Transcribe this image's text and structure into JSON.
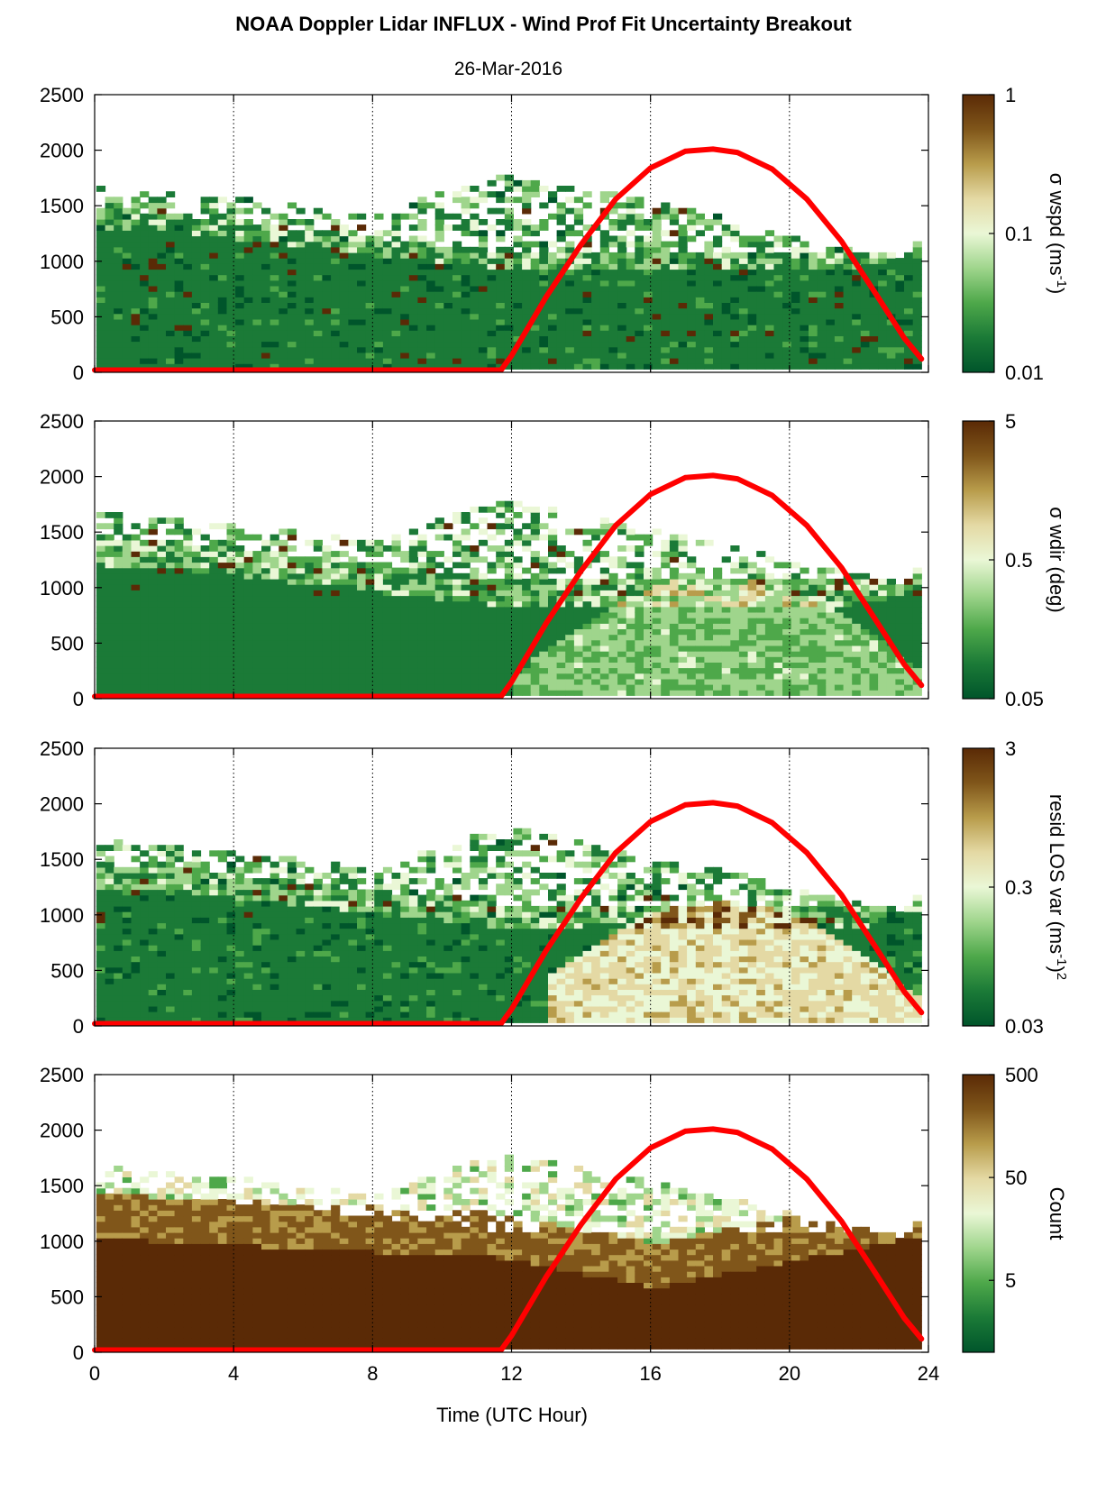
{
  "figure": {
    "title": "NOAA Doppler Lidar INFLUX - Wind Prof Fit Uncertainty Breakout",
    "subtitle": "26-Mar-2016",
    "xlabel": "Time (UTC Hour)"
  },
  "colormap": [
    "#00552b",
    "#1b7a37",
    "#4ea84a",
    "#9fd58c",
    "#eaf7d6",
    "#e4d9a4",
    "#b89c4b",
    "#80561a",
    "#5a2a06"
  ],
  "chart_data": [
    {
      "type": "heatmap",
      "panel": 1,
      "xlim": [
        0,
        24
      ],
      "ylim": [
        0,
        2500
      ],
      "xticks": [
        0,
        4,
        8,
        12,
        16,
        20,
        24
      ],
      "yticks": [
        0,
        500,
        1000,
        1500,
        2000,
        2500
      ],
      "grid": "x dotted",
      "colorbar": {
        "label_main": "σ wspd (ms",
        "label_sup": "-1",
        "label_end": ")",
        "scale": "log",
        "range": [
          0.01,
          1
        ],
        "ticks": [
          "0.01",
          "0.1",
          "1"
        ]
      },
      "series": [
        {
          "name": "",
          "type": "line",
          "color": "#ff0000",
          "x": [
            0,
            11.7,
            12,
            13,
            14,
            15,
            16,
            17,
            17.8,
            18.5,
            19.5,
            20.5,
            21.5,
            22.5,
            23.3,
            23.8
          ],
          "y": [
            20,
            20,
            150,
            680,
            1150,
            1560,
            1840,
            1990,
            2010,
            1980,
            1830,
            1560,
            1180,
            700,
            310,
            120
          ]
        }
      ]
    },
    {
      "type": "heatmap",
      "panel": 2,
      "xlim": [
        0,
        24
      ],
      "ylim": [
        0,
        2500
      ],
      "xticks": [
        0,
        4,
        8,
        12,
        16,
        20,
        24
      ],
      "yticks": [
        0,
        500,
        1000,
        1500,
        2000,
        2500
      ],
      "grid": "x dotted",
      "colorbar": {
        "label_main": "σ wdir (deg)",
        "label_sup": "",
        "label_end": "",
        "scale": "log",
        "range": [
          0.05,
          5
        ],
        "ticks": [
          "0.05",
          "0.5",
          "5"
        ]
      },
      "series": [
        {
          "name": "",
          "type": "line",
          "color": "#ff0000",
          "x": [
            0,
            11.7,
            12,
            13,
            14,
            15,
            16,
            17,
            17.8,
            18.5,
            19.5,
            20.5,
            21.5,
            22.5,
            23.3,
            23.8
          ],
          "y": [
            20,
            20,
            150,
            680,
            1150,
            1560,
            1840,
            1990,
            2010,
            1980,
            1830,
            1560,
            1180,
            700,
            310,
            120
          ]
        }
      ]
    },
    {
      "type": "heatmap",
      "panel": 3,
      "xlim": [
        0,
        24
      ],
      "ylim": [
        0,
        2500
      ],
      "xticks": [
        0,
        4,
        8,
        12,
        16,
        20,
        24
      ],
      "yticks": [
        0,
        500,
        1000,
        1500,
        2000,
        2500
      ],
      "grid": "x dotted",
      "colorbar": {
        "label_main": "resid LOS var (ms",
        "label_sup": "-1",
        "label_end": ")",
        "label_end_sup": "2",
        "scale": "log",
        "range": [
          0.03,
          3
        ],
        "ticks": [
          "0.03",
          "0.3",
          "3"
        ]
      },
      "series": [
        {
          "name": "",
          "type": "line",
          "color": "#ff0000",
          "x": [
            0,
            11.7,
            12,
            13,
            14,
            15,
            16,
            17,
            17.8,
            18.5,
            19.5,
            20.5,
            21.5,
            22.5,
            23.3,
            23.8
          ],
          "y": [
            20,
            20,
            150,
            680,
            1150,
            1560,
            1840,
            1990,
            2010,
            1980,
            1830,
            1560,
            1180,
            700,
            310,
            120
          ]
        }
      ]
    },
    {
      "type": "heatmap",
      "panel": 4,
      "xlim": [
        0,
        24
      ],
      "ylim": [
        0,
        2500
      ],
      "xticks": [
        0,
        4,
        8,
        12,
        16,
        20,
        24
      ],
      "yticks": [
        0,
        500,
        1000,
        1500,
        2000,
        2500
      ],
      "grid": "x dotted",
      "colorbar": {
        "label_main": "Count",
        "label_sup": "",
        "label_end": "",
        "scale": "log",
        "range": [
          1,
          500
        ],
        "ticks": [
          "5",
          "50",
          "500"
        ]
      },
      "series": [
        {
          "name": "",
          "type": "line",
          "color": "#ff0000",
          "x": [
            0,
            11.7,
            12,
            13,
            14,
            15,
            16,
            17,
            17.8,
            18.5,
            19.5,
            20.5,
            21.5,
            22.5,
            23.3,
            23.8
          ],
          "y": [
            20,
            20,
            150,
            680,
            1150,
            1560,
            1840,
            1990,
            2010,
            1980,
            1830,
            1560,
            1180,
            700,
            310,
            120
          ]
        }
      ]
    }
  ]
}
